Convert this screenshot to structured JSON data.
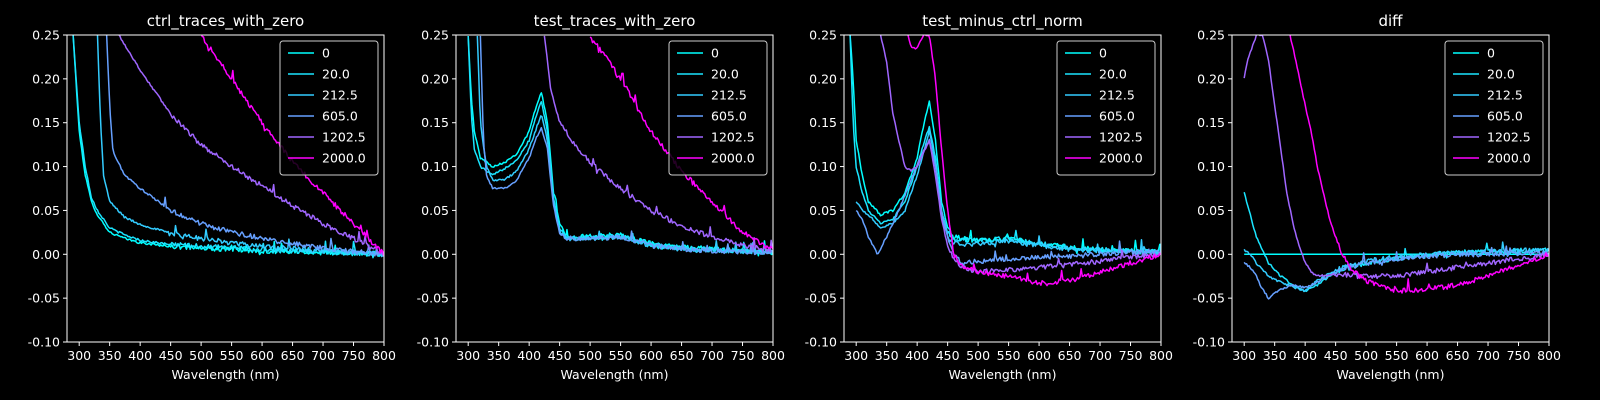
{
  "legend_labels": [
    "0",
    "20.0",
    "212.5",
    "605.0",
    "1202.5",
    "2000.0"
  ],
  "series_colors": [
    "#00ffff",
    "#1ae5ff",
    "#33ccff",
    "#66a0ff",
    "#a066ff",
    "#ff00ff"
  ],
  "chart_data": [
    {
      "type": "line",
      "title": "ctrl_traces_with_zero",
      "xlabel": "Wavelength (nm)",
      "ylabel": "",
      "xlim": [
        280,
        800
      ],
      "ylim": [
        -0.1,
        0.25
      ],
      "xticks": [
        300,
        350,
        400,
        450,
        500,
        550,
        600,
        650,
        700,
        750,
        800
      ],
      "yticks": [
        -0.1,
        -0.05,
        0.0,
        0.05,
        0.1,
        0.15,
        0.2,
        0.25
      ],
      "legend_position": "top-right",
      "series": [
        {
          "name": "0",
          "x": [
            290,
            300,
            310,
            320,
            330,
            340,
            350,
            375,
            400,
            450,
            500,
            600,
            700,
            800
          ],
          "y": [
            0.25,
            0.14,
            0.09,
            0.06,
            0.045,
            0.035,
            0.025,
            0.018,
            0.013,
            0.009,
            0.007,
            0.004,
            0.002,
            0.0
          ]
        },
        {
          "name": "20.0",
          "x": [
            290,
            300,
            310,
            320,
            330,
            340,
            350,
            375,
            400,
            450,
            500,
            600,
            700,
            800
          ],
          "y": [
            0.25,
            0.15,
            0.1,
            0.065,
            0.05,
            0.04,
            0.03,
            0.022,
            0.016,
            0.011,
            0.009,
            0.005,
            0.003,
            0.0
          ]
        },
        {
          "name": "212.5",
          "x": [
            330,
            335,
            340,
            350,
            375,
            400,
            450,
            500,
            550,
            600,
            700,
            800
          ],
          "y": [
            0.25,
            0.15,
            0.09,
            0.06,
            0.042,
            0.034,
            0.024,
            0.018,
            0.013,
            0.009,
            0.004,
            0.0
          ]
        },
        {
          "name": "605.0",
          "x": [
            345,
            350,
            355,
            360,
            375,
            400,
            450,
            500,
            550,
            600,
            650,
            700,
            750,
            800
          ],
          "y": [
            0.25,
            0.17,
            0.12,
            0.11,
            0.09,
            0.075,
            0.05,
            0.035,
            0.025,
            0.018,
            0.012,
            0.007,
            0.003,
            0.0
          ]
        },
        {
          "name": "1202.5",
          "x": [
            365,
            400,
            450,
            500,
            550,
            600,
            650,
            700,
            750,
            800
          ],
          "y": [
            0.25,
            0.21,
            0.16,
            0.125,
            0.1,
            0.078,
            0.055,
            0.035,
            0.018,
            0.0
          ]
        },
        {
          "name": "2000.0",
          "x": [
            500,
            550,
            600,
            650,
            700,
            750,
            800
          ],
          "y": [
            0.25,
            0.2,
            0.15,
            0.105,
            0.07,
            0.035,
            0.0
          ]
        }
      ]
    },
    {
      "type": "line",
      "title": "test_traces_with_zero",
      "xlabel": "Wavelength (nm)",
      "ylabel": "",
      "xlim": [
        280,
        800
      ],
      "ylim": [
        -0.1,
        0.25
      ],
      "xticks": [
        300,
        350,
        400,
        450,
        500,
        550,
        600,
        650,
        700,
        750,
        800
      ],
      "yticks": [
        -0.1,
        -0.05,
        0.0,
        0.05,
        0.1,
        0.15,
        0.2,
        0.25
      ],
      "legend_position": "top-right",
      "series": [
        {
          "name": "0",
          "x": [
            300,
            305,
            310,
            320,
            340,
            360,
            380,
            400,
            410,
            420,
            430,
            440,
            450,
            460,
            500,
            550,
            600,
            650,
            700,
            750,
            800
          ],
          "y": [
            0.25,
            0.18,
            0.14,
            0.11,
            0.1,
            0.105,
            0.115,
            0.14,
            0.165,
            0.185,
            0.15,
            0.07,
            0.035,
            0.02,
            0.02,
            0.022,
            0.012,
            0.008,
            0.006,
            0.004,
            0.002
          ]
        },
        {
          "name": "20.0",
          "x": [
            300,
            305,
            310,
            320,
            340,
            360,
            380,
            400,
            410,
            420,
            430,
            440,
            450,
            460,
            500,
            550,
            600,
            650,
            700,
            750,
            800
          ],
          "y": [
            0.25,
            0.16,
            0.12,
            0.1,
            0.09,
            0.098,
            0.108,
            0.13,
            0.155,
            0.175,
            0.14,
            0.065,
            0.03,
            0.018,
            0.018,
            0.02,
            0.01,
            0.007,
            0.005,
            0.004,
            0.002
          ]
        },
        {
          "name": "212.5",
          "x": [
            315,
            320,
            330,
            340,
            360,
            380,
            400,
            410,
            420,
            430,
            440,
            450,
            460,
            500,
            550,
            600,
            650,
            700,
            750,
            800
          ],
          "y": [
            0.25,
            0.15,
            0.1,
            0.085,
            0.085,
            0.095,
            0.12,
            0.14,
            0.16,
            0.13,
            0.06,
            0.028,
            0.018,
            0.018,
            0.02,
            0.01,
            0.006,
            0.004,
            0.003,
            0.002
          ]
        },
        {
          "name": "605.0",
          "x": [
            320,
            325,
            330,
            340,
            360,
            380,
            400,
            410,
            420,
            430,
            440,
            450,
            460,
            500,
            550,
            600,
            650,
            700,
            750,
            800
          ],
          "y": [
            0.25,
            0.13,
            0.09,
            0.075,
            0.075,
            0.085,
            0.11,
            0.13,
            0.145,
            0.12,
            0.055,
            0.025,
            0.018,
            0.018,
            0.02,
            0.01,
            0.006,
            0.004,
            0.003,
            0.002
          ]
        },
        {
          "name": "1202.5",
          "x": [
            425,
            435,
            450,
            475,
            500,
            550,
            600,
            650,
            700,
            750,
            800
          ],
          "y": [
            0.25,
            0.19,
            0.15,
            0.125,
            0.105,
            0.075,
            0.05,
            0.032,
            0.02,
            0.01,
            0.004
          ]
        },
        {
          "name": "2000.0",
          "x": [
            500,
            550,
            600,
            650,
            700,
            750,
            800
          ],
          "y": [
            0.25,
            0.2,
            0.14,
            0.095,
            0.06,
            0.025,
            0.005
          ]
        }
      ]
    },
    {
      "type": "line",
      "title": "test_minus_ctrl_norm",
      "xlabel": "Wavelength (nm)",
      "ylabel": "",
      "xlim": [
        280,
        800
      ],
      "ylim": [
        -0.1,
        0.25
      ],
      "xticks": [
        300,
        350,
        400,
        450,
        500,
        550,
        600,
        650,
        700,
        750,
        800
      ],
      "yticks": [
        -0.1,
        -0.05,
        0.0,
        0.05,
        0.1,
        0.15,
        0.2,
        0.25
      ],
      "legend_position": "top-right",
      "series": [
        {
          "name": "0",
          "x": [
            290,
            295,
            300,
            310,
            320,
            340,
            360,
            380,
            400,
            410,
            420,
            430,
            440,
            450,
            460,
            500,
            550,
            600,
            650,
            700,
            750,
            800
          ],
          "y": [
            0.25,
            0.2,
            0.13,
            0.09,
            0.06,
            0.045,
            0.05,
            0.07,
            0.11,
            0.145,
            0.175,
            0.13,
            0.06,
            0.03,
            0.02,
            0.015,
            0.018,
            0.012,
            0.008,
            0.005,
            0.004,
            0.003
          ]
        },
        {
          "name": "20.0",
          "x": [
            290,
            295,
            300,
            310,
            320,
            340,
            360,
            380,
            400,
            410,
            420,
            430,
            440,
            450,
            460,
            500,
            550,
            600,
            650,
            700,
            750,
            800
          ],
          "y": [
            0.25,
            0.15,
            0.1,
            0.07,
            0.05,
            0.035,
            0.04,
            0.06,
            0.1,
            0.125,
            0.145,
            0.11,
            0.05,
            0.025,
            0.018,
            0.015,
            0.018,
            0.012,
            0.008,
            0.005,
            0.004,
            0.003
          ]
        },
        {
          "name": "212.5",
          "x": [
            300,
            310,
            320,
            340,
            360,
            380,
            400,
            410,
            420,
            430,
            440,
            450,
            460,
            500,
            550,
            600,
            650,
            700,
            750,
            800
          ],
          "y": [
            0.06,
            0.05,
            0.045,
            0.03,
            0.035,
            0.05,
            0.09,
            0.115,
            0.14,
            0.105,
            0.045,
            0.02,
            0.012,
            0.012,
            0.015,
            0.01,
            0.006,
            0.004,
            0.003,
            0.002
          ]
        },
        {
          "name": "605.0",
          "x": [
            300,
            310,
            320,
            335,
            350,
            370,
            390,
            405,
            420,
            430,
            440,
            450,
            460,
            475,
            500,
            550,
            600,
            650,
            700,
            750,
            800
          ],
          "y": [
            0.05,
            0.04,
            0.02,
            0.0,
            0.02,
            0.05,
            0.085,
            0.11,
            0.13,
            0.1,
            0.05,
            0.02,
            0.0,
            -0.01,
            -0.008,
            -0.005,
            -0.003,
            -0.002,
            0.0,
            0.002,
            0.003
          ]
        },
        {
          "name": "1202.5",
          "x": [
            340,
            350,
            360,
            380,
            390,
            400,
            420,
            430,
            440,
            450,
            460,
            475,
            500,
            550,
            600,
            650,
            700,
            750,
            800
          ],
          "y": [
            0.25,
            0.22,
            0.16,
            0.1,
            0.095,
            0.1,
            0.13,
            0.09,
            0.04,
            0.01,
            -0.005,
            -0.015,
            -0.02,
            -0.018,
            -0.015,
            -0.012,
            -0.008,
            -0.003,
            0.0
          ]
        },
        {
          "name": "2000.0",
          "x": [
            385,
            390,
            400,
            410,
            420,
            430,
            440,
            450,
            460,
            475,
            500,
            550,
            600,
            650,
            700,
            750,
            800
          ],
          "y": [
            0.25,
            0.235,
            0.235,
            0.25,
            0.25,
            0.2,
            0.12,
            0.05,
            0.0,
            -0.015,
            -0.02,
            -0.025,
            -0.033,
            -0.03,
            -0.02,
            -0.01,
            0.0
          ]
        }
      ]
    },
    {
      "type": "line",
      "title": "diff",
      "xlabel": "Wavelength (nm)",
      "ylabel": "",
      "xlim": [
        280,
        800
      ],
      "ylim": [
        -0.1,
        0.25
      ],
      "xticks": [
        300,
        350,
        400,
        450,
        500,
        550,
        600,
        650,
        700,
        750,
        800
      ],
      "yticks": [
        -0.1,
        -0.05,
        0.0,
        0.05,
        0.1,
        0.15,
        0.2,
        0.25
      ],
      "legend_position": "top-right",
      "series": [
        {
          "name": "0",
          "x": [
            300,
            800
          ],
          "y": [
            0.0,
            0.0
          ]
        },
        {
          "name": "20.0",
          "x": [
            300,
            310,
            320,
            340,
            360,
            380,
            400,
            420,
            450,
            500,
            550,
            600,
            650,
            700,
            750,
            800
          ],
          "y": [
            0.07,
            0.045,
            0.02,
            -0.01,
            -0.025,
            -0.035,
            -0.042,
            -0.035,
            -0.02,
            -0.01,
            -0.005,
            0.0,
            0.002,
            0.003,
            0.004,
            0.005
          ]
        },
        {
          "name": "212.5",
          "x": [
            300,
            310,
            320,
            340,
            360,
            380,
            400,
            420,
            450,
            500,
            550,
            600,
            650,
            700,
            750,
            800
          ],
          "y": [
            0.005,
            0.0,
            -0.01,
            -0.025,
            -0.032,
            -0.037,
            -0.042,
            -0.03,
            -0.018,
            -0.008,
            -0.003,
            0.0,
            0.002,
            0.003,
            0.004,
            0.005
          ]
        },
        {
          "name": "605.0",
          "x": [
            300,
            310,
            320,
            330,
            340,
            350,
            360,
            380,
            400,
            420,
            450,
            500,
            550,
            600,
            650,
            700,
            750,
            800
          ],
          "y": [
            -0.01,
            -0.015,
            -0.025,
            -0.04,
            -0.05,
            -0.045,
            -0.04,
            -0.035,
            -0.038,
            -0.032,
            -0.02,
            -0.01,
            -0.005,
            -0.002,
            0.0,
            0.0,
            0.001,
            0.002
          ]
        },
        {
          "name": "1202.5",
          "x": [
            300,
            305,
            310,
            320,
            330,
            340,
            350,
            360,
            370,
            380,
            390,
            400,
            410,
            420,
            450,
            500,
            550,
            600,
            650,
            700,
            750,
            800
          ],
          "y": [
            0.2,
            0.22,
            0.23,
            0.25,
            0.25,
            0.22,
            0.17,
            0.12,
            0.07,
            0.035,
            0.01,
            -0.01,
            -0.02,
            -0.025,
            -0.023,
            -0.025,
            -0.025,
            -0.02,
            -0.015,
            -0.01,
            -0.005,
            0.0
          ]
        },
        {
          "name": "2000.0",
          "x": [
            375,
            385,
            400,
            410,
            420,
            430,
            440,
            450,
            460,
            480,
            500,
            550,
            600,
            650,
            700,
            750,
            800
          ],
          "y": [
            0.25,
            0.22,
            0.17,
            0.14,
            0.1,
            0.07,
            0.04,
            0.02,
            0.0,
            -0.02,
            -0.03,
            -0.042,
            -0.04,
            -0.035,
            -0.025,
            -0.012,
            0.0
          ]
        }
      ]
    }
  ]
}
